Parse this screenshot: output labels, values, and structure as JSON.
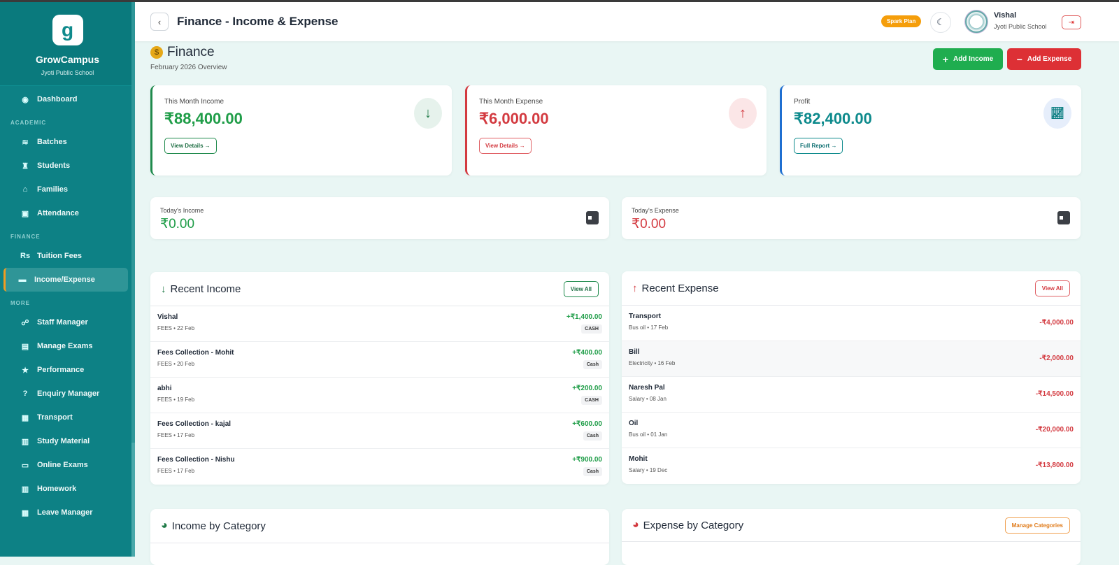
{
  "app": {
    "name": "GrowCampus",
    "school": "Jyoti Public School"
  },
  "sidebar": {
    "dashboard": "Dashboard",
    "sections": {
      "academic": "ACADEMIC",
      "finance": "FINANCE",
      "more": "MORE"
    },
    "academic": [
      {
        "label": "Batches",
        "icon": "layers-icon"
      },
      {
        "label": "Students",
        "icon": "graduate-icon"
      },
      {
        "label": "Families",
        "icon": "home-icon"
      },
      {
        "label": "Attendance",
        "icon": "clipboard-icon"
      }
    ],
    "finance": [
      {
        "label": "Tuition Fees",
        "icon": "rupee-icon"
      },
      {
        "label": "Income/Expense",
        "icon": "wallet-icon",
        "active": true
      }
    ],
    "more": [
      {
        "label": "Staff Manager"
      },
      {
        "label": "Manage Exams"
      },
      {
        "label": "Performance"
      },
      {
        "label": "Enquiry Manager"
      },
      {
        "label": "Transport"
      },
      {
        "label": "Study Material"
      },
      {
        "label": "Online Exams"
      },
      {
        "label": "Homework"
      },
      {
        "label": "Leave Manager"
      }
    ]
  },
  "header": {
    "title": "Finance - Income & Expense",
    "plan": "Spark Plan",
    "user": "Vishal",
    "school": "Jyoti Public School"
  },
  "page": {
    "title": "Finance",
    "subtitle": "February 2026 Overview",
    "add_income": "Add Income",
    "add_expense": "Add Expense"
  },
  "stats": [
    {
      "label": "This Month Income",
      "value": "₹88,400.00",
      "link": "View Details →",
      "color": "#1f9d48"
    },
    {
      "label": "This Month Expense",
      "value": "₹6,000.00",
      "link": "View Details →",
      "color": "#d33a40"
    },
    {
      "label": "Profit",
      "value": "₹82,400.00",
      "link": "Full Report →",
      "color": "#0d8a8c"
    }
  ],
  "today": [
    {
      "label": "Today's Income",
      "value": "₹0.00"
    },
    {
      "label": "Today's Expense",
      "value": "₹0.00"
    }
  ],
  "recent_income": {
    "title": "Recent Income",
    "view_all": "View All",
    "items": [
      {
        "name": "Vishal",
        "sub": "FEES • 22 Feb",
        "amount": "+₹1,400.00",
        "mode": "CASH"
      },
      {
        "name": "Fees Collection - Mohit",
        "sub": "FEES • 20 Feb",
        "amount": "+₹400.00",
        "mode": "Cash"
      },
      {
        "name": "abhi",
        "sub": "FEES • 19 Feb",
        "amount": "+₹200.00",
        "mode": "CASH"
      },
      {
        "name": "Fees Collection - kajal",
        "sub": "FEES • 17 Feb",
        "amount": "+₹600.00",
        "mode": "Cash"
      },
      {
        "name": "Fees Collection - Nishu",
        "sub": "FEES • 17 Feb",
        "amount": "+₹900.00",
        "mode": "Cash"
      }
    ]
  },
  "recent_expense": {
    "title": "Recent Expense",
    "view_all": "View All",
    "items": [
      {
        "name": "Transport",
        "sub": "Bus oil • 17 Feb",
        "amount": "-₹4,000.00"
      },
      {
        "name": "Bill",
        "sub": "Electricity • 16 Feb",
        "amount": "-₹2,000.00"
      },
      {
        "name": "Naresh Pal",
        "sub": "Salary • 08 Jan",
        "amount": "-₹14,500.00"
      },
      {
        "name": "Oil",
        "sub": "Bus oil • 01 Jan",
        "amount": "-₹20,000.00"
      },
      {
        "name": "Mohit",
        "sub": "Salary • 19 Dec",
        "amount": "-₹13,800.00"
      }
    ]
  },
  "income_by_category": {
    "title": "Income by Category"
  },
  "expense_by_category": {
    "title": "Expense by Category",
    "manage": "Manage Categories"
  }
}
